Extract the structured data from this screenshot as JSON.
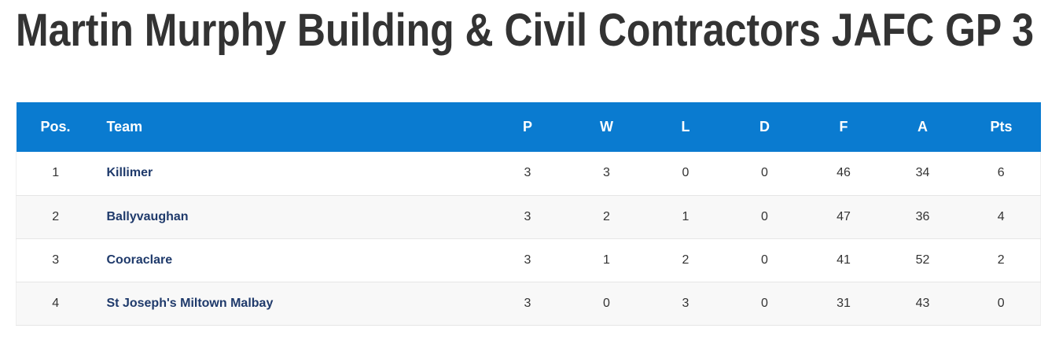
{
  "header": {
    "title": "Martin Murphy Building & Civil Contractors JAFC GP 3"
  },
  "table": {
    "columns": [
      "Pos.",
      "Team",
      "P",
      "W",
      "L",
      "D",
      "F",
      "A",
      "Pts"
    ],
    "rows": [
      [
        1,
        "Killimer",
        3,
        3,
        0,
        0,
        46,
        34,
        6
      ],
      [
        2,
        "Ballyvaughan",
        3,
        2,
        1,
        0,
        47,
        36,
        4
      ],
      [
        3,
        "Cooraclare",
        3,
        1,
        2,
        0,
        41,
        52,
        2
      ],
      [
        4,
        "St Joseph's Miltown Malbay",
        3,
        0,
        3,
        0,
        31,
        43,
        0
      ]
    ]
  }
}
